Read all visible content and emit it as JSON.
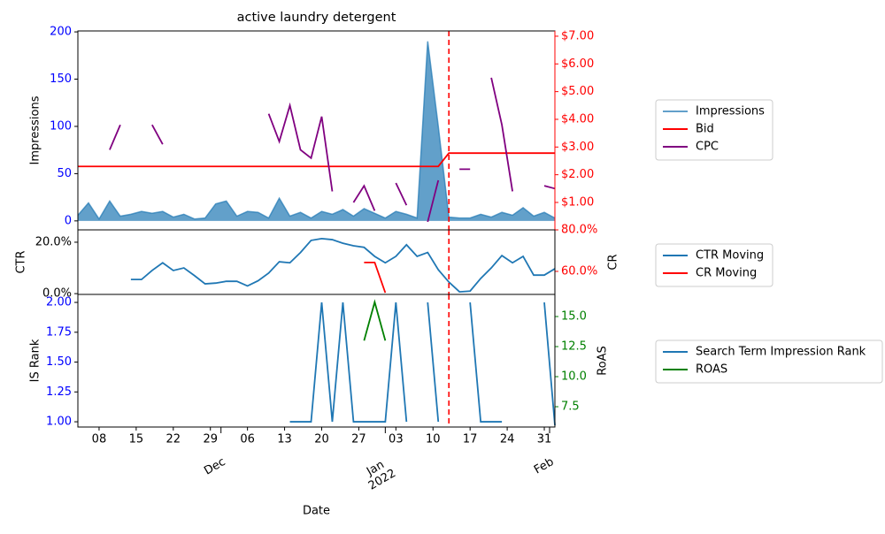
{
  "chart_data": [
    {
      "type": "line",
      "title": "active laundry detergent",
      "ylabel": "Impressions",
      "x": [
        "2021-11-04",
        "2021-11-06",
        "2021-11-08",
        "2021-11-10",
        "2021-11-12",
        "2021-11-14",
        "2021-11-16",
        "2021-11-18",
        "2021-11-20",
        "2021-11-22",
        "2021-11-24",
        "2021-11-26",
        "2021-11-28",
        "2021-11-30",
        "2021-12-02",
        "2021-12-04",
        "2021-12-06",
        "2021-12-08",
        "2021-12-10",
        "2021-12-12",
        "2021-12-14",
        "2021-12-16",
        "2021-12-18",
        "2021-12-20",
        "2021-12-22",
        "2021-12-24",
        "2021-12-26",
        "2021-12-28",
        "2021-12-30",
        "2022-01-01",
        "2022-01-03",
        "2022-01-05",
        "2022-01-07",
        "2022-01-09",
        "2022-01-11",
        "2022-01-13",
        "2022-01-15",
        "2022-01-17",
        "2022-01-19",
        "2022-01-21",
        "2022-01-23",
        "2022-01-25",
        "2022-01-27",
        "2022-01-29",
        "2022-01-31",
        "2022-02-02"
      ],
      "xlim": [
        "2021-11-04",
        "2022-02-02"
      ],
      "ylim": [
        -9.5,
        201
      ],
      "yticks": [
        0,
        50,
        100,
        150,
        200
      ],
      "ytick_color": "blue",
      "y2lim": [
        0.01,
        7.19
      ],
      "y2ticks": [
        {
          "value": 1,
          "label": "$1.00"
        },
        {
          "value": 2,
          "label": "$2.00"
        },
        {
          "value": 3,
          "label": "$3.00"
        },
        {
          "value": 4,
          "label": "$4.00"
        },
        {
          "value": 5,
          "label": "$5.00"
        },
        {
          "value": 6,
          "label": "$6.00"
        },
        {
          "value": 7,
          "label": "$7.00"
        }
      ],
      "y2tick_color": "red",
      "vline": "2022-01-13",
      "vline_color": "red",
      "legend": "outside right",
      "series": [
        {
          "name": "Impressions",
          "color": "#1f77b4",
          "kind": "area",
          "values": [
            6,
            19,
            2,
            21,
            5,
            7,
            10,
            8,
            10,
            4,
            7,
            2,
            3,
            18,
            21,
            5,
            10,
            9,
            3,
            24,
            5,
            9,
            3,
            10,
            7,
            12,
            5,
            13,
            8,
            3,
            10,
            7,
            3,
            190,
            100,
            4,
            3,
            3,
            7,
            4,
            9,
            6,
            14,
            5,
            9,
            3
          ]
        },
        {
          "name": "Bid",
          "color": "red",
          "axis": "y2",
          "values": [
            2.3,
            2.3,
            2.3,
            2.3,
            2.3,
            2.3,
            2.3,
            2.3,
            2.3,
            2.3,
            2.3,
            2.3,
            2.3,
            2.3,
            2.3,
            2.3,
            2.3,
            2.3,
            2.3,
            2.3,
            2.3,
            2.3,
            2.3,
            2.3,
            2.3,
            2.3,
            2.3,
            2.3,
            2.3,
            2.3,
            2.3,
            2.3,
            2.3,
            2.3,
            2.3,
            2.78,
            2.78,
            2.78,
            2.78,
            2.78,
            2.78,
            2.78,
            2.78,
            2.78,
            2.78,
            2.78
          ]
        },
        {
          "name": "CPC",
          "color": "purple",
          "axis": "y2",
          "values": [
            null,
            null,
            null,
            2.9,
            3.8,
            null,
            null,
            3.8,
            3.1,
            null,
            null,
            null,
            null,
            null,
            null,
            null,
            null,
            null,
            4.2,
            3.2,
            4.5,
            2.9,
            2.6,
            4.1,
            1.4,
            null,
            1.0,
            1.6,
            0.7,
            null,
            1.7,
            0.9,
            null,
            0.3,
            1.8,
            null,
            2.2,
            2.2,
            null,
            5.5,
            3.8,
            1.4,
            null,
            null,
            1.6,
            1.5
          ]
        }
      ]
    },
    {
      "type": "line",
      "ylabel": "CTR",
      "y2label": "CR",
      "x": [
        "2021-11-04",
        "2021-11-06",
        "2021-11-08",
        "2021-11-10",
        "2021-11-12",
        "2021-11-14",
        "2021-11-16",
        "2021-11-18",
        "2021-11-20",
        "2021-11-22",
        "2021-11-24",
        "2021-11-26",
        "2021-11-28",
        "2021-11-30",
        "2021-12-02",
        "2021-12-04",
        "2021-12-06",
        "2021-12-08",
        "2021-12-10",
        "2021-12-12",
        "2021-12-14",
        "2021-12-16",
        "2021-12-18",
        "2021-12-20",
        "2021-12-22",
        "2021-12-24",
        "2021-12-26",
        "2021-12-28",
        "2021-12-30",
        "2022-01-01",
        "2022-01-03",
        "2022-01-05",
        "2022-01-07",
        "2022-01-09",
        "2022-01-11",
        "2022-01-13",
        "2022-01-15",
        "2022-01-17",
        "2022-01-19",
        "2022-01-21",
        "2022-01-23",
        "2022-01-25",
        "2022-01-27",
        "2022-01-29",
        "2022-01-31",
        "2022-02-02"
      ],
      "xlim": [
        "2021-11-04",
        "2022-02-02"
      ],
      "ylim": [
        -0.3,
        24.8
      ],
      "yticks": [
        {
          "value": 0,
          "label": "0.0%"
        },
        {
          "value": 20,
          "label": "20.0%"
        }
      ],
      "ytick_color": "black",
      "y2lim": [
        48.9,
        80
      ],
      "y2ticks": [
        {
          "value": 60,
          "label": "60.0%"
        },
        {
          "value": 80,
          "label": "80.0%"
        }
      ],
      "y2tick_color": "red",
      "vline": "2022-01-13",
      "vline_color": "red",
      "legend": "outside right",
      "series": [
        {
          "name": "CTR Moving",
          "color": "#1f77b4",
          "values": [
            null,
            null,
            null,
            null,
            null,
            5.5,
            5.5,
            9,
            12,
            9,
            10,
            7,
            3.8,
            4.1,
            4.8,
            4.8,
            3,
            5,
            8,
            12.4,
            12,
            16,
            20.7,
            21.4,
            21,
            19.6,
            18.6,
            18,
            14.5,
            12,
            14.5,
            19,
            14.5,
            16,
            9.3,
            4.5,
            0.7,
            1,
            5.9,
            10,
            14.8,
            12,
            14.5,
            7.2,
            7.2,
            9.7
          ]
        },
        {
          "name": "CR Moving",
          "color": "red",
          "axis": "y2",
          "values": [
            null,
            null,
            null,
            null,
            null,
            null,
            null,
            null,
            null,
            null,
            null,
            null,
            null,
            null,
            null,
            null,
            null,
            null,
            null,
            null,
            null,
            null,
            null,
            null,
            null,
            null,
            null,
            64.3,
            64.3,
            49.7,
            null,
            null,
            null,
            null,
            null,
            null,
            null,
            null,
            null,
            null,
            null,
            null,
            null,
            null,
            null,
            null
          ]
        }
      ]
    },
    {
      "type": "line",
      "ylabel": "IS Rank",
      "y2label": "RoAS",
      "xlabel": "Date",
      "x": [
        "2021-11-04",
        "2021-11-06",
        "2021-11-08",
        "2021-11-10",
        "2021-11-12",
        "2021-11-14",
        "2021-11-16",
        "2021-11-18",
        "2021-11-20",
        "2021-11-22",
        "2021-11-24",
        "2021-11-26",
        "2021-11-28",
        "2021-11-30",
        "2021-12-02",
        "2021-12-04",
        "2021-12-06",
        "2021-12-08",
        "2021-12-10",
        "2021-12-12",
        "2021-12-14",
        "2021-12-16",
        "2021-12-18",
        "2021-12-20",
        "2021-12-22",
        "2021-12-24",
        "2021-12-26",
        "2021-12-28",
        "2021-12-30",
        "2022-01-01",
        "2022-01-03",
        "2022-01-05",
        "2022-01-07",
        "2022-01-09",
        "2022-01-11",
        "2022-01-13",
        "2022-01-15",
        "2022-01-17",
        "2022-01-19",
        "2022-01-21",
        "2022-01-23",
        "2022-01-25",
        "2022-01-27",
        "2022-01-29",
        "2022-01-31",
        "2022-02-02"
      ],
      "xlim": [
        "2021-11-04",
        "2022-02-02"
      ],
      "xticks": [
        {
          "value": "2021-11-08",
          "label": "08"
        },
        {
          "value": "2021-11-15",
          "label": "15"
        },
        {
          "value": "2021-11-22",
          "label": "22"
        },
        {
          "value": "2021-11-29",
          "label": "29"
        },
        {
          "value": "2021-12-06",
          "label": "06"
        },
        {
          "value": "2021-12-13",
          "label": "13"
        },
        {
          "value": "2021-12-20",
          "label": "20"
        },
        {
          "value": "2021-12-27",
          "label": "27"
        },
        {
          "value": "2022-01-03",
          "label": "03"
        },
        {
          "value": "2022-01-10",
          "label": "10"
        },
        {
          "value": "2022-01-17",
          "label": "17"
        },
        {
          "value": "2022-01-24",
          "label": "24"
        },
        {
          "value": "2022-01-31",
          "label": "31"
        }
      ],
      "xticks_major": [
        {
          "value": "2021-12-01",
          "label": "Dec"
        },
        {
          "value": "2022-01-01",
          "label": "Jan\n2022"
        },
        {
          "value": "2022-02-01",
          "label": "Feb"
        }
      ],
      "ylim": [
        0.956,
        2.067
      ],
      "yticks": [
        {
          "value": 1,
          "label": "1.00"
        },
        {
          "value": 1.25,
          "label": "1.25"
        },
        {
          "value": 1.5,
          "label": "1.50"
        },
        {
          "value": 1.75,
          "label": "1.75"
        },
        {
          "value": 2,
          "label": "2.00"
        }
      ],
      "ytick_color": "blue",
      "y2lim": [
        5.81,
        16.84
      ],
      "y2ticks": [
        {
          "value": 7.5,
          "label": "7.5"
        },
        {
          "value": 10,
          "label": "10.0"
        },
        {
          "value": 12.5,
          "label": "12.5"
        },
        {
          "value": 15,
          "label": "15.0"
        }
      ],
      "y2tick_color": "green",
      "vline": "2022-01-13",
      "vline_color": "red",
      "legend": "outside right",
      "series": [
        {
          "name": "Search Term Impression Rank",
          "color": "#1f77b4",
          "values": [
            null,
            null,
            null,
            null,
            null,
            null,
            null,
            null,
            null,
            null,
            null,
            null,
            null,
            null,
            null,
            null,
            null,
            null,
            null,
            null,
            1,
            1,
            1,
            2,
            1,
            2,
            1,
            1,
            1,
            1,
            2,
            1,
            null,
            2,
            1,
            null,
            null,
            2,
            1,
            1,
            1,
            null,
            null,
            null,
            2,
            0.97
          ]
        },
        {
          "name": "ROAS",
          "color": "green",
          "axis": "y2",
          "values": [
            null,
            null,
            null,
            null,
            null,
            null,
            null,
            null,
            null,
            null,
            null,
            null,
            null,
            null,
            null,
            null,
            null,
            null,
            null,
            null,
            null,
            null,
            null,
            null,
            null,
            null,
            null,
            13,
            16.2,
            13,
            null,
            null,
            null,
            null,
            null,
            null,
            null,
            null,
            null,
            null,
            null,
            null,
            null,
            null,
            null,
            null
          ]
        }
      ]
    }
  ]
}
